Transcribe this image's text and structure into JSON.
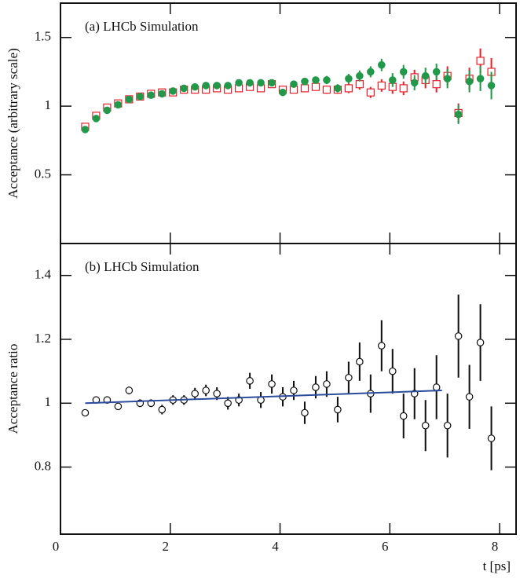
{
  "chart_data": [
    {
      "type": "scatter",
      "title": "(a)  LHCb Simulation",
      "ylabel": "Acceptance (arbitrary scale)",
      "xlim": [
        0,
        8.3
      ],
      "xticks": [
        0,
        2,
        4,
        6,
        8
      ],
      "ylim": [
        0,
        1.75
      ],
      "yticks": [
        0.5,
        1,
        1.5
      ],
      "x": [
        0.45,
        0.65,
        0.85,
        1.05,
        1.25,
        1.45,
        1.65,
        1.85,
        2.05,
        2.25,
        2.45,
        2.65,
        2.85,
        3.05,
        3.25,
        3.45,
        3.65,
        3.85,
        4.05,
        4.25,
        4.45,
        4.65,
        4.85,
        5.05,
        5.25,
        5.45,
        5.65,
        5.85,
        6.05,
        6.25,
        6.45,
        6.65,
        6.85,
        7.05,
        7.25,
        7.45,
        7.65,
        7.85
      ],
      "series": [
        {
          "color": "#e8212a",
          "marker": "square",
          "filled": false,
          "values": [
            0.85,
            0.93,
            0.99,
            1.02,
            1.05,
            1.07,
            1.09,
            1.1,
            1.1,
            1.12,
            1.12,
            1.12,
            1.13,
            1.12,
            1.13,
            1.14,
            1.13,
            1.16,
            1.12,
            1.12,
            1.13,
            1.14,
            1.12,
            1.12,
            1.13,
            1.16,
            1.1,
            1.15,
            1.14,
            1.13,
            1.21,
            1.19,
            1.16,
            1.22,
            0.95,
            1.2,
            1.33,
            1.25
          ],
          "errors": [
            0.01,
            0.01,
            0.01,
            0.01,
            0.01,
            0.01,
            0.01,
            0.012,
            0.012,
            0.012,
            0.012,
            0.015,
            0.015,
            0.015,
            0.015,
            0.018,
            0.018,
            0.02,
            0.02,
            0.02,
            0.025,
            0.025,
            0.03,
            0.03,
            0.035,
            0.04,
            0.04,
            0.045,
            0.05,
            0.05,
            0.055,
            0.06,
            0.06,
            0.07,
            0.07,
            0.08,
            0.09,
            0.1
          ]
        },
        {
          "color": "#22994a",
          "marker": "circle",
          "filled": true,
          "values": [
            0.83,
            0.91,
            0.97,
            1.01,
            1.05,
            1.07,
            1.08,
            1.09,
            1.11,
            1.13,
            1.14,
            1.15,
            1.15,
            1.15,
            1.17,
            1.17,
            1.17,
            1.17,
            1.1,
            1.16,
            1.18,
            1.19,
            1.19,
            1.13,
            1.2,
            1.22,
            1.25,
            1.3,
            1.19,
            1.25,
            1.17,
            1.22,
            1.25,
            1.2,
            0.94,
            1.18,
            1.2,
            1.15
          ],
          "errors": [
            0.01,
            0.01,
            0.01,
            0.01,
            0.01,
            0.01,
            0.01,
            0.012,
            0.012,
            0.012,
            0.012,
            0.015,
            0.015,
            0.015,
            0.015,
            0.018,
            0.018,
            0.02,
            0.02,
            0.02,
            0.025,
            0.025,
            0.03,
            0.03,
            0.035,
            0.04,
            0.04,
            0.045,
            0.05,
            0.05,
            0.055,
            0.06,
            0.06,
            0.07,
            0.07,
            0.08,
            0.09,
            0.1
          ]
        }
      ]
    },
    {
      "type": "scatter",
      "title": "(b)  LHCb Simulation",
      "ylabel": "Acceptance ratio",
      "xlabel": "t [ps]",
      "xlim": [
        0,
        8.3
      ],
      "xticks": [
        0,
        2,
        4,
        6,
        8
      ],
      "ylim": [
        0.59,
        1.5
      ],
      "yticks": [
        0.8,
        1,
        1.2,
        1.4
      ],
      "x": [
        0.45,
        0.65,
        0.85,
        1.05,
        1.25,
        1.45,
        1.65,
        1.85,
        2.05,
        2.25,
        2.45,
        2.65,
        2.85,
        3.05,
        3.25,
        3.45,
        3.65,
        3.85,
        4.05,
        4.25,
        4.45,
        4.65,
        4.85,
        5.05,
        5.25,
        5.45,
        5.65,
        5.85,
        6.05,
        6.25,
        6.45,
        6.65,
        6.85,
        7.05,
        7.25,
        7.45,
        7.65,
        7.85
      ],
      "series": [
        {
          "color": "#111111",
          "marker": "circle",
          "filled": false,
          "values": [
            0.97,
            1.01,
            1.01,
            0.99,
            1.04,
            1.0,
            1.0,
            0.98,
            1.01,
            1.01,
            1.03,
            1.04,
            1.03,
            1.0,
            1.01,
            1.07,
            1.01,
            1.06,
            1.02,
            1.04,
            0.97,
            1.05,
            1.06,
            0.98,
            1.08,
            1.13,
            1.03,
            1.18,
            1.1,
            0.96,
            1.03,
            0.93,
            1.05,
            0.93,
            1.21,
            1.02,
            1.19,
            0.89
          ],
          "errors": [
            0.01,
            0.01,
            0.01,
            0.01,
            0.012,
            0.012,
            0.012,
            0.015,
            0.015,
            0.015,
            0.018,
            0.018,
            0.02,
            0.02,
            0.02,
            0.025,
            0.025,
            0.03,
            0.03,
            0.03,
            0.035,
            0.035,
            0.04,
            0.04,
            0.05,
            0.06,
            0.06,
            0.08,
            0.07,
            0.07,
            0.08,
            0.08,
            0.1,
            0.1,
            0.13,
            0.1,
            0.12,
            0.1
          ]
        }
      ],
      "fit": {
        "color": "#2b4c9b",
        "x": [
          0.45,
          6.95
        ],
        "values": [
          1.0,
          1.04
        ]
      }
    }
  ]
}
